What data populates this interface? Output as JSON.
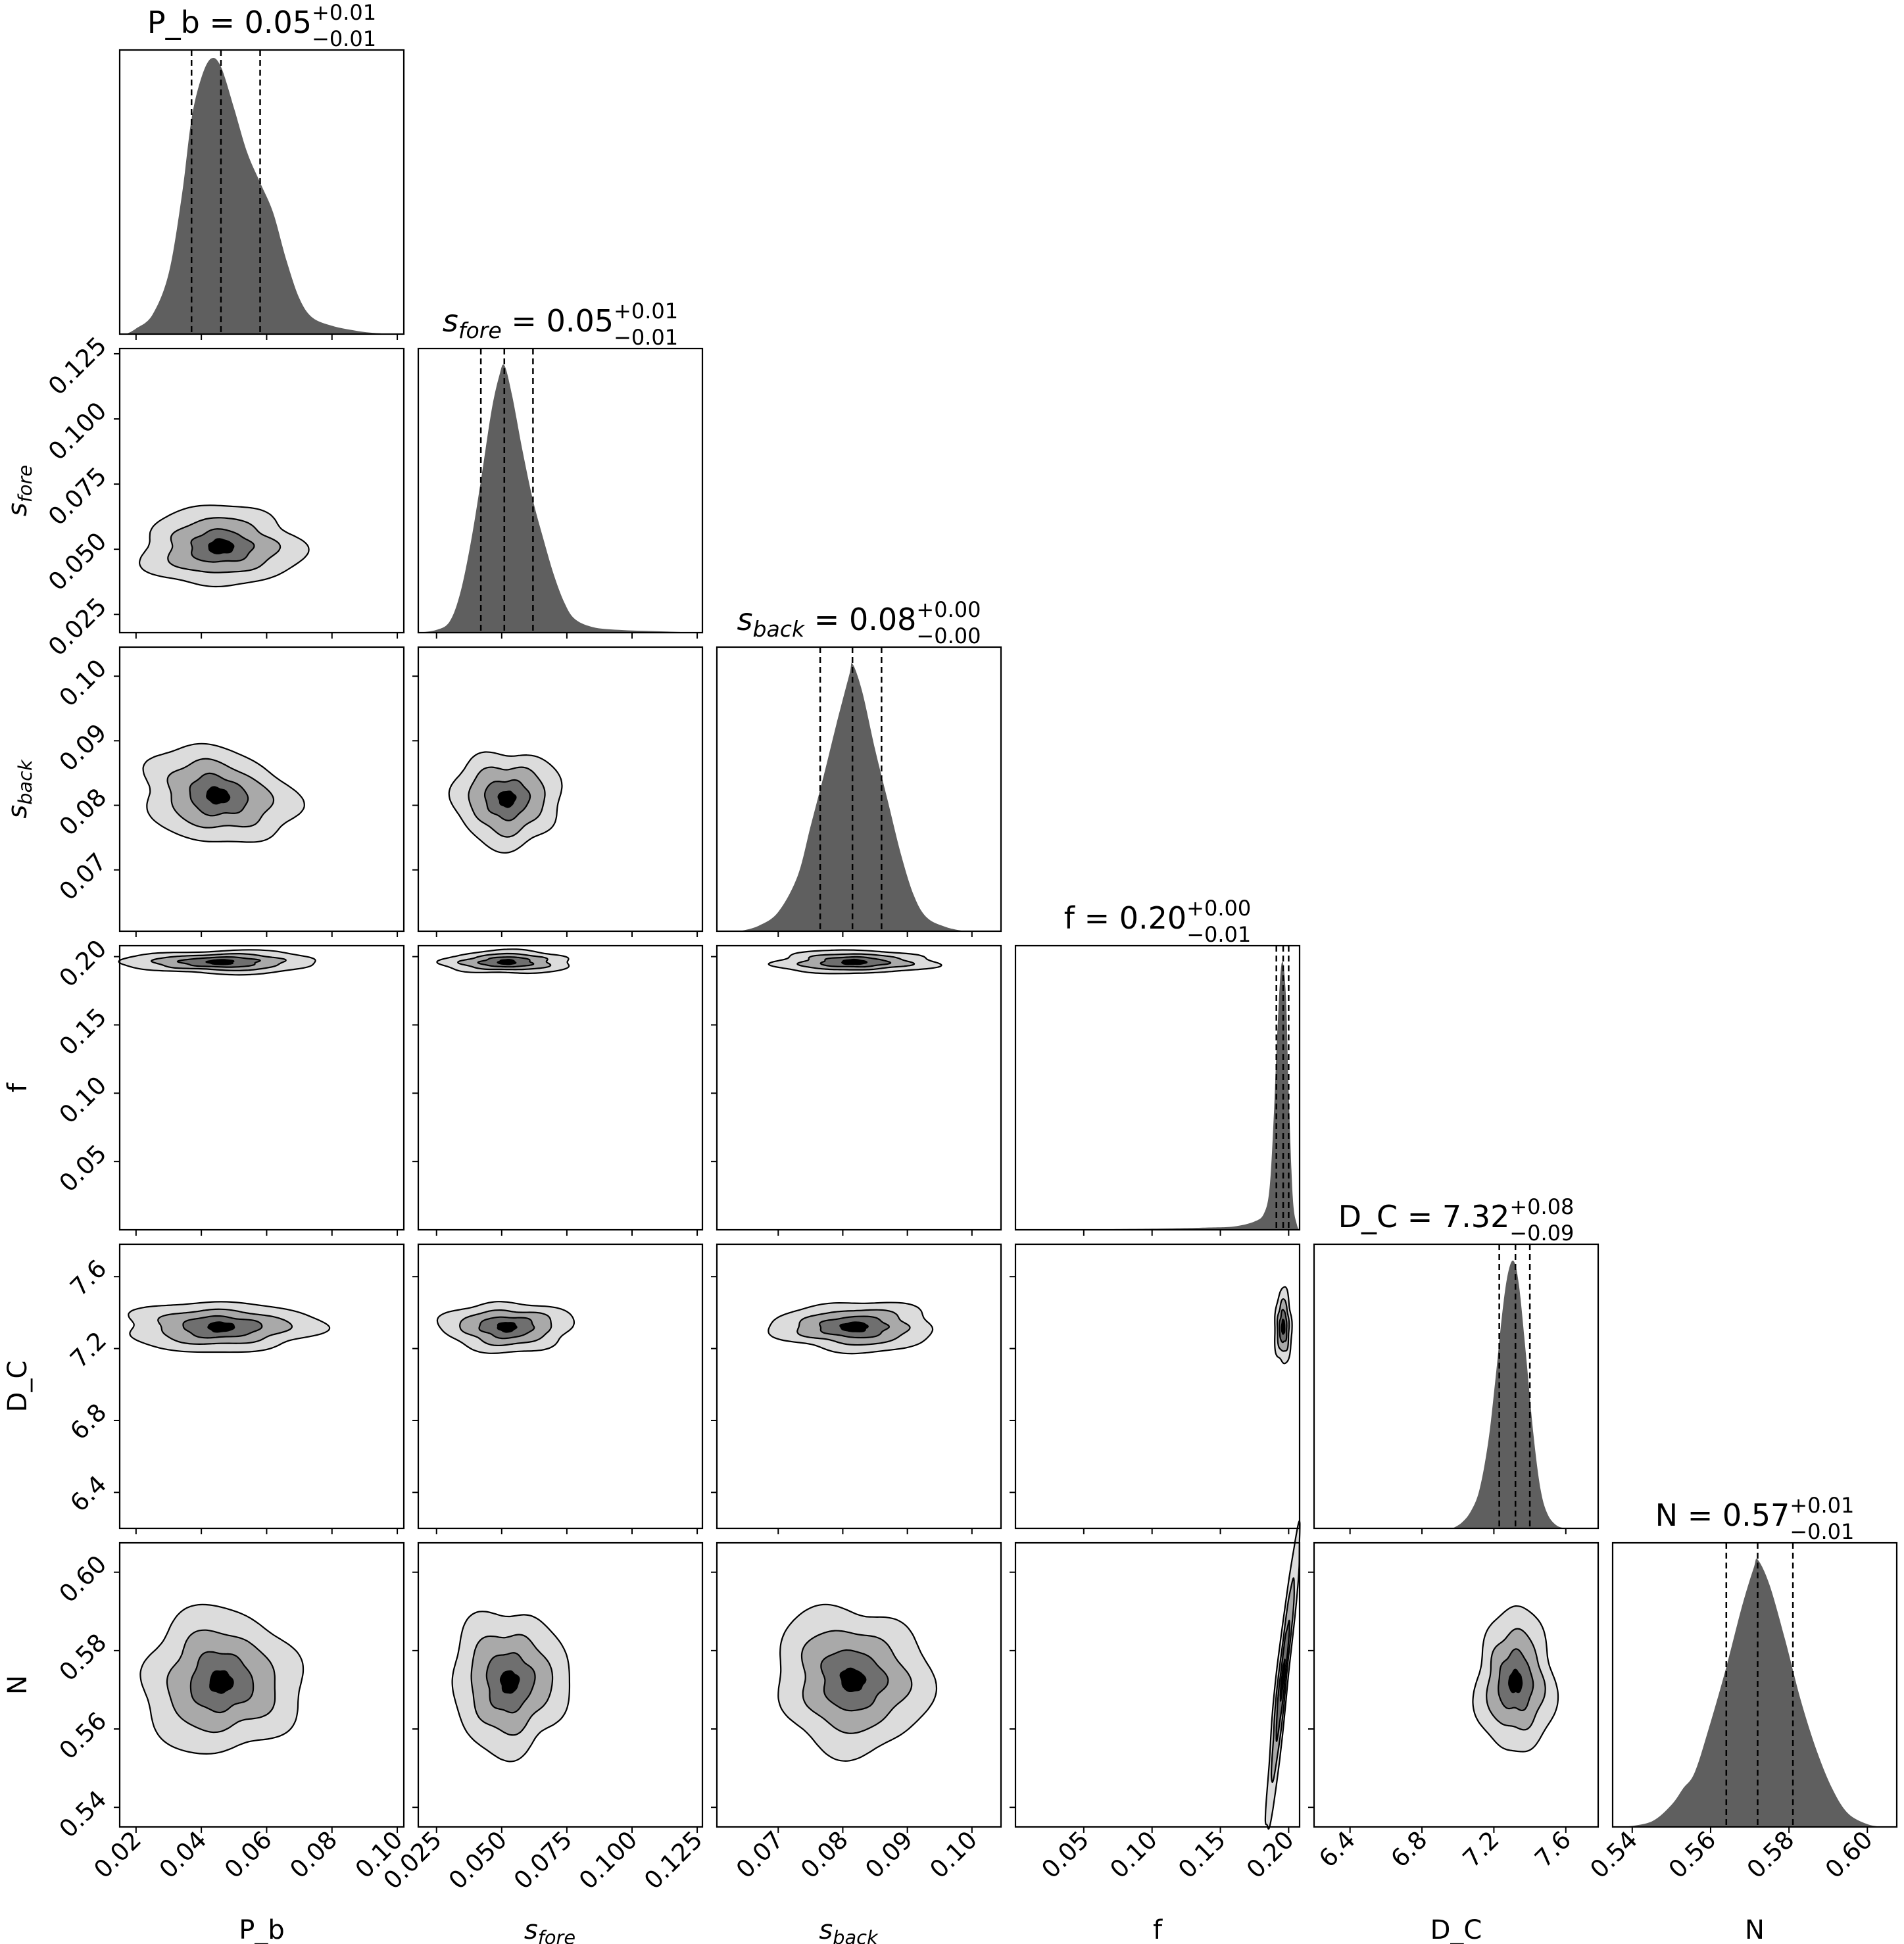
{
  "chart_data": {
    "type": "corner-plot",
    "grid": false,
    "legend": "none",
    "colors": {
      "hist_fill": "#5f5f5f",
      "contour_levels": [
        "#dcdcdc",
        "#a9a9a9",
        "#6f6f6f",
        "#000000"
      ],
      "axes": "#000000",
      "quantile_lines": "#000000"
    },
    "parameters": [
      {
        "key": "P_b",
        "label": "P_b",
        "italic": false,
        "range": [
          0.015,
          0.102
        ],
        "ticks": [
          "0.02",
          "0.04",
          "0.06",
          "0.08",
          "0.10"
        ],
        "tick_values": [
          0.02,
          0.04,
          0.06,
          0.08,
          0.1
        ],
        "title_main": "P_b = 0.05",
        "title_sup": "+0.01",
        "title_sub": "−0.01",
        "median": 0.046,
        "q_low": 0.037,
        "q_high": 0.058,
        "hist": [
          [
            0.017,
            0
          ],
          [
            0.02,
            0.02
          ],
          [
            0.025,
            0.07
          ],
          [
            0.03,
            0.22
          ],
          [
            0.034,
            0.5
          ],
          [
            0.037,
            0.78
          ],
          [
            0.04,
            0.93
          ],
          [
            0.043,
            1.0
          ],
          [
            0.046,
            0.97
          ],
          [
            0.05,
            0.82
          ],
          [
            0.054,
            0.66
          ],
          [
            0.058,
            0.55
          ],
          [
            0.062,
            0.44
          ],
          [
            0.066,
            0.27
          ],
          [
            0.07,
            0.13
          ],
          [
            0.074,
            0.06
          ],
          [
            0.08,
            0.03
          ],
          [
            0.086,
            0.015
          ],
          [
            0.092,
            0.005
          ],
          [
            0.1,
            0
          ]
        ]
      },
      {
        "key": "s_fore",
        "label": "s",
        "label_sub": "fore",
        "italic": true,
        "range": [
          0.018,
          0.127
        ],
        "ticks": [
          "0.025",
          "0.050",
          "0.075",
          "0.100",
          "0.125"
        ],
        "tick_values": [
          0.025,
          0.05,
          0.075,
          0.1,
          0.125
        ],
        "title_main": "s",
        "title_main_sub": "fore",
        "title_value": " = 0.05",
        "title_sup": "+0.01",
        "title_sub": "−0.01",
        "median": 0.051,
        "q_low": 0.042,
        "q_high": 0.062,
        "hist": [
          [
            0.018,
            0
          ],
          [
            0.025,
            0.01
          ],
          [
            0.03,
            0.04
          ],
          [
            0.034,
            0.14
          ],
          [
            0.038,
            0.32
          ],
          [
            0.042,
            0.55
          ],
          [
            0.046,
            0.8
          ],
          [
            0.049,
            0.93
          ],
          [
            0.051,
            0.97
          ],
          [
            0.054,
            0.86
          ],
          [
            0.058,
            0.66
          ],
          [
            0.062,
            0.48
          ],
          [
            0.066,
            0.34
          ],
          [
            0.07,
            0.21
          ],
          [
            0.074,
            0.11
          ],
          [
            0.078,
            0.05
          ],
          [
            0.085,
            0.02
          ],
          [
            0.095,
            0.01
          ],
          [
            0.11,
            0.005
          ],
          [
            0.127,
            0
          ]
        ]
      },
      {
        "key": "s_back",
        "label": "s",
        "label_sub": "back",
        "italic": true,
        "range": [
          0.0605,
          0.1045
        ],
        "ticks": [
          "0.07",
          "0.08",
          "0.09",
          "0.10"
        ],
        "tick_values": [
          0.07,
          0.08,
          0.09,
          0.1
        ],
        "title_main": "s",
        "title_main_sub": "back",
        "title_value": " = 0.08",
        "title_sup": "+0.00",
        "title_sub": "−0.00",
        "median": 0.0815,
        "q_low": 0.0765,
        "q_high": 0.086,
        "hist": [
          [
            0.064,
            0
          ],
          [
            0.067,
            0.02
          ],
          [
            0.07,
            0.07
          ],
          [
            0.073,
            0.2
          ],
          [
            0.075,
            0.38
          ],
          [
            0.077,
            0.56
          ],
          [
            0.079,
            0.75
          ],
          [
            0.081,
            0.93
          ],
          [
            0.0815,
            0.97
          ],
          [
            0.083,
            0.87
          ],
          [
            0.085,
            0.66
          ],
          [
            0.087,
            0.47
          ],
          [
            0.089,
            0.28
          ],
          [
            0.091,
            0.13
          ],
          [
            0.093,
            0.05
          ],
          [
            0.096,
            0.015
          ],
          [
            0.099,
            0
          ]
        ]
      },
      {
        "key": "f",
        "label": "f",
        "italic": false,
        "range": [
          0.0,
          0.208
        ],
        "ticks": [
          "0.05",
          "0.10",
          "0.15",
          "0.20"
        ],
        "tick_values": [
          0.05,
          0.1,
          0.15,
          0.2
        ],
        "title_main": "f = 0.20",
        "title_sup": "+0.00",
        "title_sub": "−0.01",
        "median": 0.196,
        "q_low": 0.191,
        "q_high": 0.2,
        "hist": [
          [
            0.0,
            0
          ],
          [
            0.06,
            0.002
          ],
          [
            0.1,
            0.004
          ],
          [
            0.14,
            0.008
          ],
          [
            0.16,
            0.012
          ],
          [
            0.175,
            0.03
          ],
          [
            0.182,
            0.06
          ],
          [
            0.186,
            0.15
          ],
          [
            0.189,
            0.4
          ],
          [
            0.192,
            0.75
          ],
          [
            0.195,
            0.97
          ],
          [
            0.198,
            0.85
          ],
          [
            0.2,
            0.5
          ],
          [
            0.203,
            0.12
          ],
          [
            0.206,
            0.02
          ],
          [
            0.208,
            0
          ]
        ]
      },
      {
        "key": "D_C",
        "label": "D_C",
        "italic": false,
        "range": [
          6.2,
          7.78
        ],
        "ticks": [
          "6.4",
          "6.8",
          "7.2",
          "7.6"
        ],
        "tick_values": [
          6.4,
          6.8,
          7.2,
          7.6
        ],
        "title_main": "D_C = 7.32",
        "title_sup": "+0.08",
        "title_sub": "−0.09",
        "median": 7.32,
        "q_low": 7.23,
        "q_high": 7.4,
        "hist": [
          [
            6.97,
            0
          ],
          [
            7.02,
            0.02
          ],
          [
            7.07,
            0.06
          ],
          [
            7.12,
            0.14
          ],
          [
            7.17,
            0.32
          ],
          [
            7.21,
            0.55
          ],
          [
            7.25,
            0.8
          ],
          [
            7.28,
            0.93
          ],
          [
            7.31,
            0.97
          ],
          [
            7.34,
            0.88
          ],
          [
            7.38,
            0.62
          ],
          [
            7.42,
            0.34
          ],
          [
            7.46,
            0.14
          ],
          [
            7.5,
            0.05
          ],
          [
            7.55,
            0.01
          ],
          [
            7.6,
            0
          ]
        ]
      },
      {
        "key": "N",
        "label": "N",
        "italic": false,
        "range": [
          0.535,
          0.6075
        ],
        "ticks": [
          "0.54",
          "0.56",
          "0.58",
          "0.60"
        ],
        "tick_values": [
          0.54,
          0.56,
          0.58,
          0.6
        ],
        "title_main": "N = 0.57",
        "title_sup": "+0.01",
        "title_sub": "−0.01",
        "median": 0.572,
        "q_low": 0.564,
        "q_high": 0.581,
        "hist": [
          [
            0.538,
            0
          ],
          [
            0.545,
            0.02
          ],
          [
            0.55,
            0.08
          ],
          [
            0.553,
            0.14
          ],
          [
            0.556,
            0.2
          ],
          [
            0.56,
            0.38
          ],
          [
            0.564,
            0.58
          ],
          [
            0.568,
            0.8
          ],
          [
            0.571,
            0.94
          ],
          [
            0.572,
            0.97
          ],
          [
            0.575,
            0.88
          ],
          [
            0.579,
            0.68
          ],
          [
            0.583,
            0.46
          ],
          [
            0.587,
            0.28
          ],
          [
            0.591,
            0.14
          ],
          [
            0.595,
            0.05
          ],
          [
            0.6,
            0.01
          ],
          [
            0.604,
            0
          ]
        ]
      }
    ],
    "contours": [
      {
        "row": 1,
        "col": 0,
        "center": [
          0.046,
          0.051
        ],
        "widths": [
          0.0245,
          0.0165,
          0.0095,
          0.0038
        ],
        "heights": [
          0.0155,
          0.0105,
          0.0062,
          0.0027
        ],
        "rotate": 0
      },
      {
        "row": 2,
        "col": 0,
        "center": [
          0.045,
          0.0815
        ],
        "widths": [
          0.024,
          0.016,
          0.009,
          0.0035
        ],
        "heights": [
          0.0073,
          0.005,
          0.003,
          0.0012
        ],
        "rotate": 12
      },
      {
        "row": 2,
        "col": 1,
        "center": [
          0.052,
          0.081
        ],
        "widths": [
          0.021,
          0.0145,
          0.0085,
          0.0032
        ],
        "heights": [
          0.0075,
          0.0052,
          0.003,
          0.0012
        ],
        "rotate": 0
      },
      {
        "row": 3,
        "col": 0,
        "center": [
          0.046,
          0.196
        ],
        "widths": [
          0.03,
          0.02,
          0.012,
          0.004
        ],
        "heights": [
          0.0085,
          0.0058,
          0.0036,
          0.0017
        ],
        "rotate": 0
      },
      {
        "row": 3,
        "col": 1,
        "center": [
          0.052,
          0.196
        ],
        "widths": [
          0.025,
          0.017,
          0.01,
          0.0033
        ],
        "heights": [
          0.0085,
          0.0058,
          0.0036,
          0.0017
        ],
        "rotate": 0
      },
      {
        "row": 3,
        "col": 2,
        "center": [
          0.0817,
          0.196
        ],
        "widths": [
          0.0126,
          0.0085,
          0.0052,
          0.0019
        ],
        "heights": [
          0.0085,
          0.0058,
          0.0036,
          0.0017
        ],
        "rotate": 0
      },
      {
        "row": 4,
        "col": 0,
        "center": [
          0.046,
          7.32
        ],
        "widths": [
          0.03,
          0.02,
          0.012,
          0.004
        ],
        "heights": [
          0.14,
          0.095,
          0.058,
          0.026
        ],
        "rotate": 0
      },
      {
        "row": 4,
        "col": 1,
        "center": [
          0.052,
          7.32
        ],
        "widths": [
          0.0255,
          0.0175,
          0.0105,
          0.0036
        ],
        "heights": [
          0.14,
          0.095,
          0.058,
          0.026
        ],
        "rotate": 0
      },
      {
        "row": 4,
        "col": 2,
        "center": [
          0.0818,
          7.32
        ],
        "widths": [
          0.0126,
          0.0086,
          0.0053,
          0.0021
        ],
        "heights": [
          0.14,
          0.095,
          0.058,
          0.026
        ],
        "rotate": 0
      },
      {
        "row": 4,
        "col": 3,
        "center": [
          0.196,
          7.32
        ],
        "widths": [
          0.0063,
          0.0043,
          0.0027,
          0.0011
        ],
        "heights": [
          0.21,
          0.145,
          0.09,
          0.04
        ],
        "rotate": 0
      },
      {
        "row": 5,
        "col": 0,
        "center": [
          0.046,
          0.572
        ],
        "widths": [
          0.0245,
          0.0165,
          0.0095,
          0.0035
        ],
        "heights": [
          0.0185,
          0.0125,
          0.0075,
          0.0028
        ],
        "rotate": 0
      },
      {
        "row": 5,
        "col": 1,
        "center": [
          0.053,
          0.572
        ],
        "widths": [
          0.0225,
          0.0155,
          0.009,
          0.0034
        ],
        "heights": [
          0.0185,
          0.0125,
          0.0075,
          0.0028
        ],
        "rotate": 0
      },
      {
        "row": 5,
        "col": 2,
        "center": [
          0.0815,
          0.5725
        ],
        "widths": [
          0.0123,
          0.0084,
          0.005,
          0.0019
        ],
        "heights": [
          0.0185,
          0.0125,
          0.0075,
          0.0028
        ],
        "rotate": 28
      },
      {
        "row": 5,
        "col": 3,
        "center": [
          0.1955,
          0.5725
        ],
        "widths": [
          0.0045,
          0.003,
          0.0018,
          0.0007
        ],
        "heights": [
          0.039,
          0.026,
          0.015,
          0.005
        ],
        "rotate": 6
      },
      {
        "row": 5,
        "col": 4,
        "center": [
          7.32,
          0.572
        ],
        "widths": [
          0.22,
          0.155,
          0.095,
          0.036
        ],
        "heights": [
          0.0185,
          0.0125,
          0.0075,
          0.0028
        ],
        "rotate": 0
      }
    ]
  }
}
